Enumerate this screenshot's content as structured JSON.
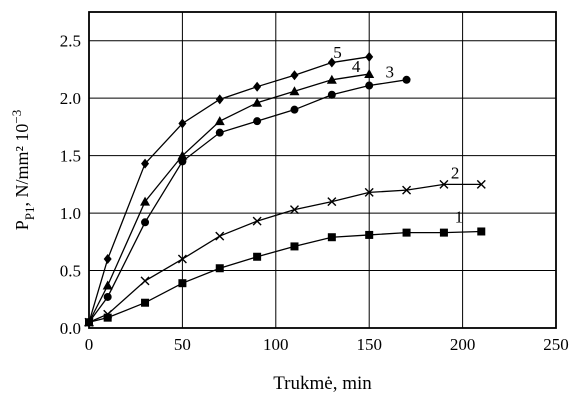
{
  "chart_data": {
    "type": "line",
    "title": "",
    "xlabel": "Trukmė, min",
    "ylabel": "P_P1, N/mm² 10⁻³",
    "ylabel_main": "P",
    "ylabel_sub": "P1",
    "ylabel_rest": ", N/mm² 10",
    "ylabel_sup": "−3",
    "xlim": [
      0,
      250
    ],
    "ylim": [
      0,
      2.75
    ],
    "x_ticks": [
      0,
      50,
      100,
      150,
      200,
      250
    ],
    "x_tick_labels": [
      "0",
      "50",
      "100",
      "150",
      "200",
      "250"
    ],
    "y_ticks": [
      0,
      0.5,
      1.0,
      1.5,
      2.0,
      2.5
    ],
    "y_tick_labels": [
      "0.0",
      "0.5",
      "1.0",
      "1.5",
      "2.0",
      "2.5"
    ],
    "grid": true,
    "legend": "none",
    "series": [
      {
        "name": "1",
        "marker": "square",
        "x": [
          0,
          10,
          30,
          50,
          70,
          90,
          110,
          130,
          150,
          170,
          190,
          210
        ],
        "y": [
          0.05,
          0.09,
          0.22,
          0.39,
          0.52,
          0.62,
          0.71,
          0.79,
          0.81,
          0.83,
          0.83,
          0.84
        ]
      },
      {
        "name": "2",
        "marker": "x",
        "x": [
          0,
          10,
          30,
          50,
          70,
          90,
          110,
          130,
          150,
          170,
          190,
          210
        ],
        "y": [
          0.05,
          0.12,
          0.41,
          0.6,
          0.8,
          0.93,
          1.03,
          1.1,
          1.18,
          1.2,
          1.25,
          1.25
        ]
      },
      {
        "name": "3",
        "marker": "circle",
        "x": [
          0,
          10,
          30,
          50,
          70,
          90,
          110,
          130,
          150,
          170
        ],
        "y": [
          0.05,
          0.27,
          0.92,
          1.45,
          1.7,
          1.8,
          1.9,
          2.03,
          2.11,
          2.16
        ]
      },
      {
        "name": "4",
        "marker": "triangle",
        "x": [
          0,
          10,
          30,
          50,
          70,
          90,
          110,
          130,
          150
        ],
        "y": [
          0.05,
          0.37,
          1.1,
          1.5,
          1.8,
          1.96,
          2.06,
          2.16,
          2.21
        ]
      },
      {
        "name": "5",
        "marker": "diamond",
        "x": [
          0,
          10,
          30,
          50,
          70,
          90,
          110,
          130,
          150
        ],
        "y": [
          0.05,
          0.6,
          1.43,
          1.78,
          1.99,
          2.1,
          2.2,
          2.31,
          2.36
        ]
      }
    ]
  }
}
